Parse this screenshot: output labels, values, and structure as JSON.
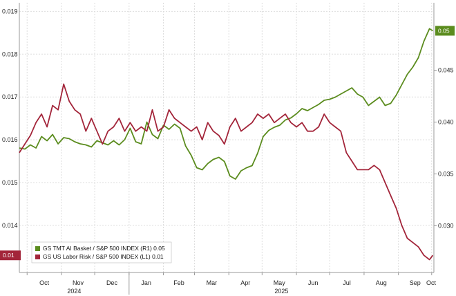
{
  "chart_data": {
    "type": "line",
    "title": "",
    "x_axis": {
      "months": [
        "Oct",
        "Nov",
        "Dec",
        "Jan",
        "Feb",
        "Mar",
        "Apr",
        "May",
        "Jun",
        "Jul",
        "Aug",
        "Sep",
        "Oct"
      ],
      "years": [
        "2024",
        "2025"
      ],
      "range": [
        "2024-09-24",
        "2025-10-03"
      ]
    },
    "y_left": {
      "ticks": [
        "0.014",
        "0.015",
        "0.016",
        "0.017",
        "0.018",
        "0.019"
      ],
      "range": [
        0.0129,
        0.0192
      ]
    },
    "y_right": {
      "ticks": [
        "0.030",
        "0.035",
        "0.040",
        "0.045"
      ],
      "range": [
        0.0255,
        0.0515
      ]
    },
    "grid": true,
    "legend_position": "bottom-left",
    "series": [
      {
        "name": "GS TMT AI Basket / S&P 500 INDEX (R1)",
        "last_label": "0.05",
        "axis": "right",
        "color": "#5b8c1e",
        "x": [
          "2024-09-24",
          "2024-09-29",
          "2024-10-04",
          "2024-10-09",
          "2024-10-14",
          "2024-10-19",
          "2024-10-24",
          "2024-10-29",
          "2024-11-03",
          "2024-11-08",
          "2024-11-13",
          "2024-11-18",
          "2024-11-23",
          "2024-11-28",
          "2024-12-03",
          "2024-12-08",
          "2024-12-13",
          "2024-12-18",
          "2024-12-23",
          "2024-12-28",
          "2025-01-02",
          "2025-01-07",
          "2025-01-12",
          "2025-01-17",
          "2025-01-22",
          "2025-01-27",
          "2025-02-01",
          "2025-02-06",
          "2025-02-11",
          "2025-02-16",
          "2025-02-21",
          "2025-02-26",
          "2025-03-03",
          "2025-03-08",
          "2025-03-13",
          "2025-03-18",
          "2025-03-23",
          "2025-03-28",
          "2025-04-02",
          "2025-04-07",
          "2025-04-12",
          "2025-04-17",
          "2025-04-22",
          "2025-04-27",
          "2025-05-02",
          "2025-05-07",
          "2025-05-12",
          "2025-05-17",
          "2025-05-22",
          "2025-05-27",
          "2025-06-01",
          "2025-06-06",
          "2025-06-11",
          "2025-06-16",
          "2025-06-21",
          "2025-06-26",
          "2025-07-01",
          "2025-07-06",
          "2025-07-11",
          "2025-07-16",
          "2025-07-21",
          "2025-07-26",
          "2025-07-31",
          "2025-08-05",
          "2025-08-10",
          "2025-08-15",
          "2025-08-20",
          "2025-08-25",
          "2025-08-30",
          "2025-09-04",
          "2025-09-09",
          "2025-09-14",
          "2025-09-19",
          "2025-09-24",
          "2025-09-29",
          "2025-10-02"
        ],
        "values": [
          0.0375,
          0.0374,
          0.0378,
          0.0375,
          0.0386,
          0.0382,
          0.0388,
          0.0379,
          0.0385,
          0.0384,
          0.0381,
          0.0379,
          0.0378,
          0.0376,
          0.0382,
          0.038,
          0.0378,
          0.0382,
          0.0378,
          0.0383,
          0.0394,
          0.0381,
          0.0379,
          0.04,
          0.0388,
          0.0384,
          0.0397,
          0.0393,
          0.0398,
          0.0394,
          0.0377,
          0.0368,
          0.0356,
          0.0354,
          0.036,
          0.0364,
          0.0366,
          0.0362,
          0.0348,
          0.0345,
          0.0353,
          0.0356,
          0.0358,
          0.037,
          0.0386,
          0.0392,
          0.0395,
          0.0397,
          0.0402,
          0.0404,
          0.0408,
          0.0413,
          0.0411,
          0.0414,
          0.0417,
          0.0421,
          0.0422,
          0.0424,
          0.0427,
          0.043,
          0.0433,
          0.0427,
          0.0424,
          0.0416,
          0.042,
          0.0424,
          0.0416,
          0.0418,
          0.0426,
          0.0436,
          0.0446,
          0.0453,
          0.0462,
          0.0478,
          0.049,
          0.0488
        ]
      },
      {
        "name": "GS US Labor Risk / S&P 500 INDEX (L1)",
        "last_label": "0.01",
        "axis": "left",
        "color": "#a3253a",
        "x": [
          "2024-09-24",
          "2024-09-29",
          "2024-10-04",
          "2024-10-09",
          "2024-10-14",
          "2024-10-19",
          "2024-10-24",
          "2024-10-29",
          "2024-11-03",
          "2024-11-08",
          "2024-11-13",
          "2024-11-18",
          "2024-11-23",
          "2024-11-28",
          "2024-12-03",
          "2024-12-08",
          "2024-12-13",
          "2024-12-18",
          "2024-12-23",
          "2024-12-28",
          "2025-01-02",
          "2025-01-07",
          "2025-01-12",
          "2025-01-17",
          "2025-01-22",
          "2025-01-27",
          "2025-02-01",
          "2025-02-06",
          "2025-02-11",
          "2025-02-16",
          "2025-02-21",
          "2025-02-26",
          "2025-03-03",
          "2025-03-08",
          "2025-03-13",
          "2025-03-18",
          "2025-03-23",
          "2025-03-28",
          "2025-04-02",
          "2025-04-07",
          "2025-04-12",
          "2025-04-17",
          "2025-04-22",
          "2025-04-27",
          "2025-05-02",
          "2025-05-07",
          "2025-05-12",
          "2025-05-17",
          "2025-05-22",
          "2025-05-27",
          "2025-06-01",
          "2025-06-06",
          "2025-06-11",
          "2025-06-16",
          "2025-06-21",
          "2025-06-26",
          "2025-07-01",
          "2025-07-06",
          "2025-07-11",
          "2025-07-16",
          "2025-07-21",
          "2025-07-26",
          "2025-07-31",
          "2025-08-05",
          "2025-08-10",
          "2025-08-15",
          "2025-08-20",
          "2025-08-25",
          "2025-08-30",
          "2025-09-04",
          "2025-09-09",
          "2025-09-14",
          "2025-09-19",
          "2025-09-24",
          "2025-09-29",
          "2025-10-02"
        ],
        "values": [
          0.0157,
          0.0159,
          0.0161,
          0.0164,
          0.0166,
          0.0163,
          0.0168,
          0.0167,
          0.0173,
          0.0169,
          0.0167,
          0.0166,
          0.0162,
          0.0165,
          0.0162,
          0.0159,
          0.0162,
          0.0163,
          0.0165,
          0.0162,
          0.0164,
          0.0162,
          0.0163,
          0.0162,
          0.0167,
          0.0162,
          0.0163,
          0.0167,
          0.0165,
          0.0164,
          0.0163,
          0.0162,
          0.0163,
          0.016,
          0.0164,
          0.0162,
          0.0161,
          0.0159,
          0.0163,
          0.0165,
          0.0162,
          0.0163,
          0.0164,
          0.0166,
          0.0165,
          0.0166,
          0.0164,
          0.0165,
          0.0166,
          0.0164,
          0.0163,
          0.0164,
          0.0162,
          0.0162,
          0.0163,
          0.0166,
          0.0164,
          0.0163,
          0.0162,
          0.0157,
          0.0155,
          0.0153,
          0.0153,
          0.0153,
          0.0154,
          0.0153,
          0.015,
          0.0147,
          0.0144,
          0.014,
          0.0137,
          0.0136,
          0.0135,
          0.0133,
          0.0132,
          0.0133
        ]
      }
    ]
  }
}
